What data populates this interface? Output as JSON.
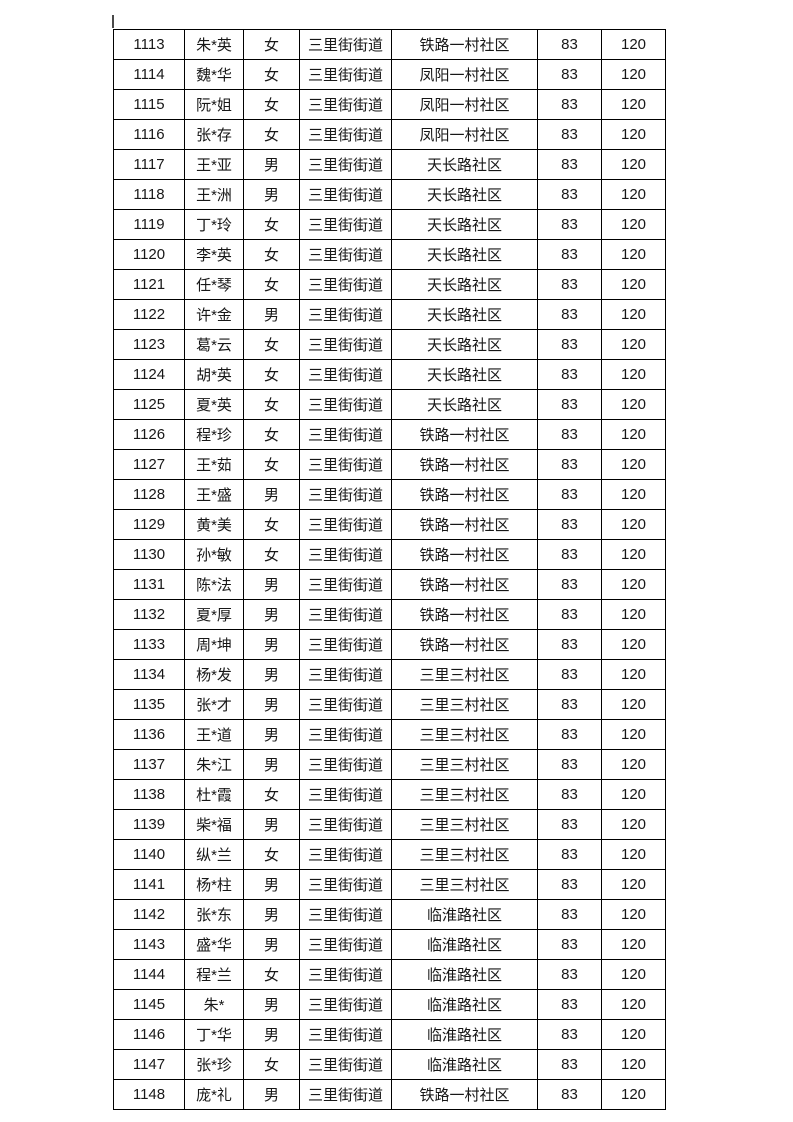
{
  "page": {
    "background_color": "#ffffff",
    "border_color": "#000000",
    "text_color": "#171717"
  },
  "table": {
    "columns": [
      {
        "key": "id"
      },
      {
        "key": "name"
      },
      {
        "key": "gender"
      },
      {
        "key": "street"
      },
      {
        "key": "community"
      },
      {
        "key": "score"
      },
      {
        "key": "amount"
      }
    ],
    "rows": [
      {
        "id": "1113",
        "name": "朱*英",
        "gender": "女",
        "street": "三里街街道",
        "community": "铁路一村社区",
        "score": "83",
        "amount": "120"
      },
      {
        "id": "1114",
        "name": "魏*华",
        "gender": "女",
        "street": "三里街街道",
        "community": "凤阳一村社区",
        "score": "83",
        "amount": "120"
      },
      {
        "id": "1115",
        "name": "阮*姐",
        "gender": "女",
        "street": "三里街街道",
        "community": "凤阳一村社区",
        "score": "83",
        "amount": "120"
      },
      {
        "id": "1116",
        "name": "张*存",
        "gender": "女",
        "street": "三里街街道",
        "community": "凤阳一村社区",
        "score": "83",
        "amount": "120"
      },
      {
        "id": "1117",
        "name": "王*亚",
        "gender": "男",
        "street": "三里街街道",
        "community": "天长路社区",
        "score": "83",
        "amount": "120"
      },
      {
        "id": "1118",
        "name": "王*洲",
        "gender": "男",
        "street": "三里街街道",
        "community": "天长路社区",
        "score": "83",
        "amount": "120"
      },
      {
        "id": "1119",
        "name": "丁*玲",
        "gender": "女",
        "street": "三里街街道",
        "community": "天长路社区",
        "score": "83",
        "amount": "120"
      },
      {
        "id": "1120",
        "name": "李*英",
        "gender": "女",
        "street": "三里街街道",
        "community": "天长路社区",
        "score": "83",
        "amount": "120"
      },
      {
        "id": "1121",
        "name": "任*琴",
        "gender": "女",
        "street": "三里街街道",
        "community": "天长路社区",
        "score": "83",
        "amount": "120"
      },
      {
        "id": "1122",
        "name": "许*金",
        "gender": "男",
        "street": "三里街街道",
        "community": "天长路社区",
        "score": "83",
        "amount": "120"
      },
      {
        "id": "1123",
        "name": "葛*云",
        "gender": "女",
        "street": "三里街街道",
        "community": "天长路社区",
        "score": "83",
        "amount": "120"
      },
      {
        "id": "1124",
        "name": "胡*英",
        "gender": "女",
        "street": "三里街街道",
        "community": "天长路社区",
        "score": "83",
        "amount": "120"
      },
      {
        "id": "1125",
        "name": "夏*英",
        "gender": "女",
        "street": "三里街街道",
        "community": "天长路社区",
        "score": "83",
        "amount": "120"
      },
      {
        "id": "1126",
        "name": "程*珍",
        "gender": "女",
        "street": "三里街街道",
        "community": "铁路一村社区",
        "score": "83",
        "amount": "120"
      },
      {
        "id": "1127",
        "name": "王*茹",
        "gender": "女",
        "street": "三里街街道",
        "community": "铁路一村社区",
        "score": "83",
        "amount": "120"
      },
      {
        "id": "1128",
        "name": "王*盛",
        "gender": "男",
        "street": "三里街街道",
        "community": "铁路一村社区",
        "score": "83",
        "amount": "120"
      },
      {
        "id": "1129",
        "name": "黄*美",
        "gender": "女",
        "street": "三里街街道",
        "community": "铁路一村社区",
        "score": "83",
        "amount": "120"
      },
      {
        "id": "1130",
        "name": "孙*敏",
        "gender": "女",
        "street": "三里街街道",
        "community": "铁路一村社区",
        "score": "83",
        "amount": "120"
      },
      {
        "id": "1131",
        "name": "陈*法",
        "gender": "男",
        "street": "三里街街道",
        "community": "铁路一村社区",
        "score": "83",
        "amount": "120"
      },
      {
        "id": "1132",
        "name": "夏*厚",
        "gender": "男",
        "street": "三里街街道",
        "community": "铁路一村社区",
        "score": "83",
        "amount": "120"
      },
      {
        "id": "1133",
        "name": "周*坤",
        "gender": "男",
        "street": "三里街街道",
        "community": "铁路一村社区",
        "score": "83",
        "amount": "120"
      },
      {
        "id": "1134",
        "name": "杨*发",
        "gender": "男",
        "street": "三里街街道",
        "community": "三里三村社区",
        "score": "83",
        "amount": "120"
      },
      {
        "id": "1135",
        "name": "张*才",
        "gender": "男",
        "street": "三里街街道",
        "community": "三里三村社区",
        "score": "83",
        "amount": "120"
      },
      {
        "id": "1136",
        "name": "王*道",
        "gender": "男",
        "street": "三里街街道",
        "community": "三里三村社区",
        "score": "83",
        "amount": "120"
      },
      {
        "id": "1137",
        "name": "朱*江",
        "gender": "男",
        "street": "三里街街道",
        "community": "三里三村社区",
        "score": "83",
        "amount": "120"
      },
      {
        "id": "1138",
        "name": "杜*霞",
        "gender": "女",
        "street": "三里街街道",
        "community": "三里三村社区",
        "score": "83",
        "amount": "120"
      },
      {
        "id": "1139",
        "name": "柴*福",
        "gender": "男",
        "street": "三里街街道",
        "community": "三里三村社区",
        "score": "83",
        "amount": "120"
      },
      {
        "id": "1140",
        "name": "纵*兰",
        "gender": "女",
        "street": "三里街街道",
        "community": "三里三村社区",
        "score": "83",
        "amount": "120"
      },
      {
        "id": "1141",
        "name": "杨*柱",
        "gender": "男",
        "street": "三里街街道",
        "community": "三里三村社区",
        "score": "83",
        "amount": "120"
      },
      {
        "id": "1142",
        "name": "张*东",
        "gender": "男",
        "street": "三里街街道",
        "community": "临淮路社区",
        "score": "83",
        "amount": "120"
      },
      {
        "id": "1143",
        "name": "盛*华",
        "gender": "男",
        "street": "三里街街道",
        "community": "临淮路社区",
        "score": "83",
        "amount": "120"
      },
      {
        "id": "1144",
        "name": "程*兰",
        "gender": "女",
        "street": "三里街街道",
        "community": "临淮路社区",
        "score": "83",
        "amount": "120"
      },
      {
        "id": "1145",
        "name": "朱*",
        "gender": "男",
        "street": "三里街街道",
        "community": "临淮路社区",
        "score": "83",
        "amount": "120"
      },
      {
        "id": "1146",
        "name": "丁*华",
        "gender": "男",
        "street": "三里街街道",
        "community": "临淮路社区",
        "score": "83",
        "amount": "120"
      },
      {
        "id": "1147",
        "name": "张*珍",
        "gender": "女",
        "street": "三里街街道",
        "community": "临淮路社区",
        "score": "83",
        "amount": "120"
      },
      {
        "id": "1148",
        "name": "庞*礼",
        "gender": "男",
        "street": "三里街街道",
        "community": "铁路一村社区",
        "score": "83",
        "amount": "120"
      }
    ]
  }
}
